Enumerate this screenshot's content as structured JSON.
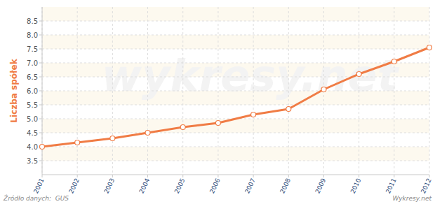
{
  "chart_data": {
    "type": "line",
    "y_label": "Liczba spółek",
    "source": "Źródło danych:  GUS",
    "credit": "Wykresy.net",
    "watermark": "wykresy.net",
    "categories": [
      "2001",
      "2002",
      "2003",
      "2004",
      "2005",
      "2006",
      "2007",
      "2008",
      "2009",
      "2010",
      "2011",
      "2012"
    ],
    "values": [
      4.0,
      4.15,
      4.3,
      4.5,
      4.7,
      4.85,
      5.15,
      5.35,
      6.05,
      6.6,
      7.05,
      7.55
    ],
    "color": "#f07c45",
    "marker": "circle",
    "ylim": [
      3.0,
      9.0
    ],
    "yticks": [
      3.5,
      {
        "value": 4,
        "label": "4.0"
      },
      4.5,
      {
        "value": 5,
        "label": "5.0"
      },
      5.5,
      {
        "value": 6,
        "label": "6.0"
      },
      6.5,
      {
        "value": 7,
        "label": "7.0"
      },
      7.5,
      {
        "value": 8,
        "label": "8.0"
      },
      8.5
    ],
    "grid": true
  }
}
